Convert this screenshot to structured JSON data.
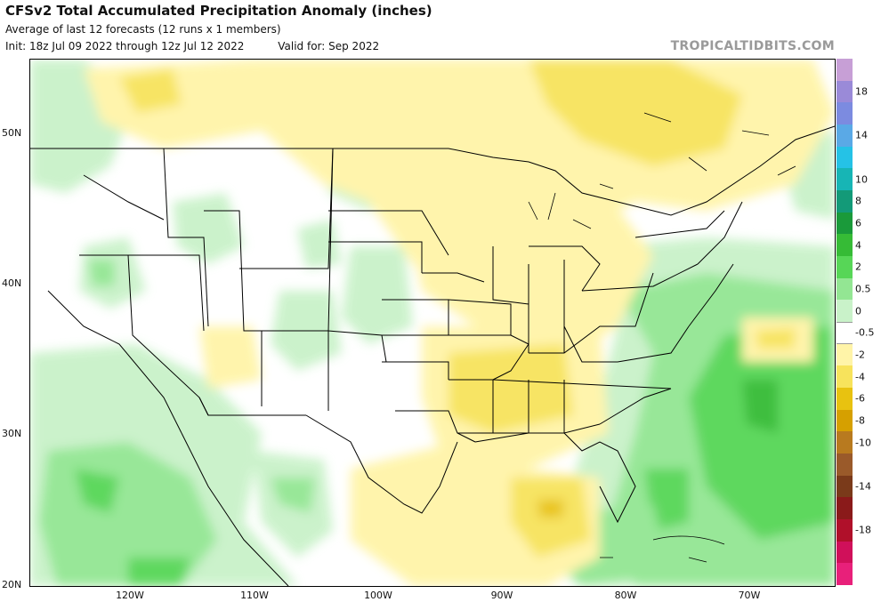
{
  "title": "CFSv2 Total Accumulated Precipitation Anomaly (inches)",
  "subtitle": "Average of last 12 forecasts (12 runs x 1 members)",
  "init": "Init: 18z Jul 09 2022 through 12z Jul 12 2022",
  "valid": "Valid for: Sep 2022",
  "brand": "TROPICALTIDBITS.COM",
  "lat_labels": [
    "50N",
    "40N",
    "30N",
    "20N"
  ],
  "lon_labels": [
    "120W",
    "110W",
    "100W",
    "90W",
    "80W",
    "70W"
  ],
  "colorbar": {
    "labels": [
      "18",
      "14",
      "10",
      "8",
      "6",
      "4",
      "2",
      "0.5",
      "0",
      "-0.5",
      "-2",
      "-4",
      "-6",
      "-8",
      "-10",
      "-14",
      "-18"
    ],
    "colors": [
      "#c79fd6",
      "#9a8ad8",
      "#7c8be0",
      "#5aa9e6",
      "#25c2e6",
      "#17b5b5",
      "#139a78",
      "#1a9a3a",
      "#36bb36",
      "#57d657",
      "#93e693",
      "#c9f2c9",
      "#ffffff",
      "#fff4a8",
      "#f7e35c",
      "#e8c210",
      "#d6a000",
      "#b87a1f",
      "#9a5a2a",
      "#7a3a1a",
      "#8a1a1a",
      "#b0102a",
      "#d0105a",
      "#e8207a"
    ],
    "grayline": "#9a9a9a"
  }
}
